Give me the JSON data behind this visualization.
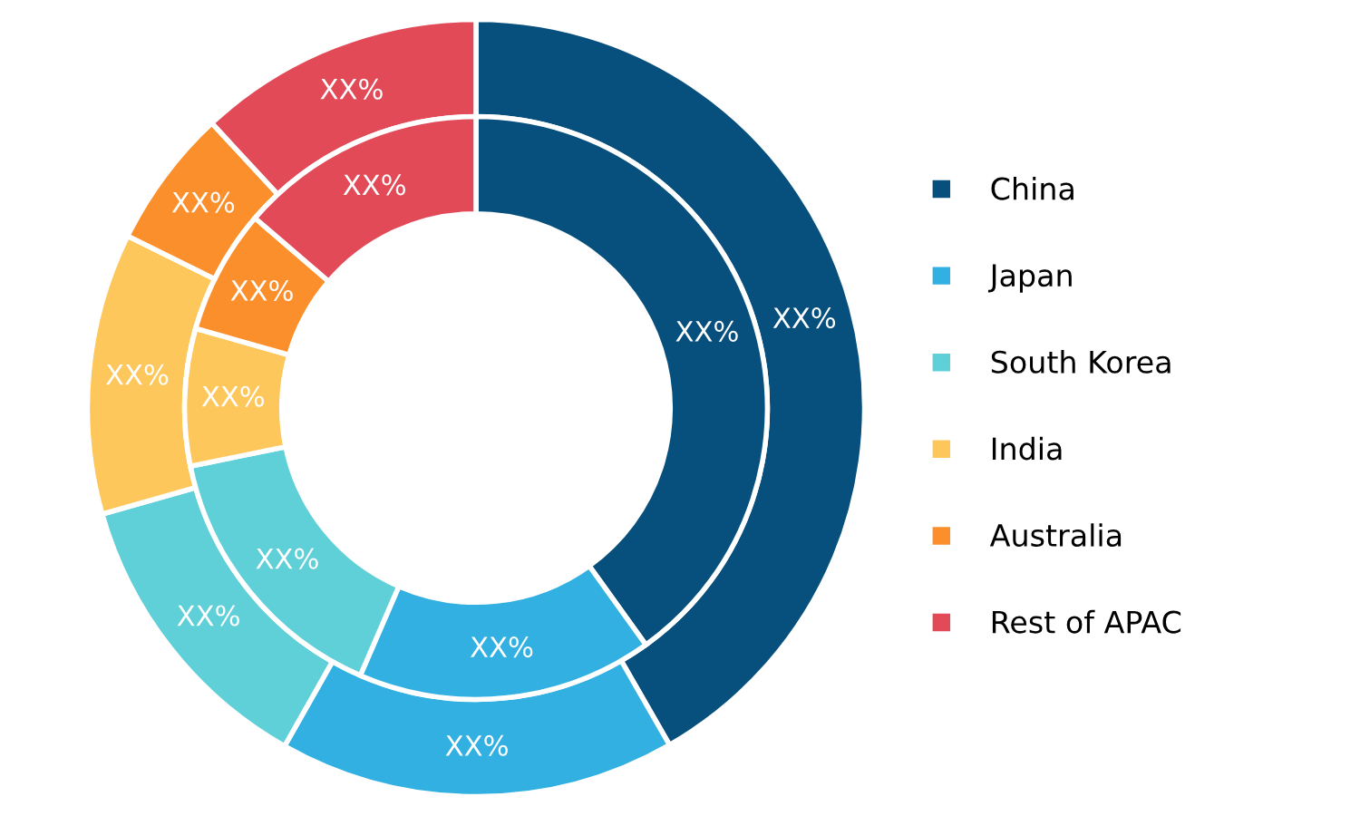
{
  "chart_data": {
    "type": "donut",
    "categories": [
      "China",
      "Japan",
      "South Korea",
      "India",
      "Australia",
      "Rest of APAC"
    ],
    "colors": [
      "#07507d",
      "#33b0e2",
      "#5fcfd8",
      "#fdc75b",
      "#fb8f2b",
      "#e24a58"
    ],
    "series": [
      {
        "values": [
          41.7,
          16.5,
          12.4,
          11.7,
          5.8,
          11.9
        ],
        "value_labels": [
          "XX%",
          "XX%",
          "XX%",
          "XX%",
          "XX%",
          "XX%"
        ]
      },
      {
        "values": [
          40.1,
          16.4,
          15.3,
          7.6,
          6.9,
          13.7
        ],
        "value_labels": [
          "XX%",
          "XX%",
          "XX%",
          "XX%",
          "XX%",
          "XX%"
        ]
      }
    ],
    "legend": "right"
  }
}
